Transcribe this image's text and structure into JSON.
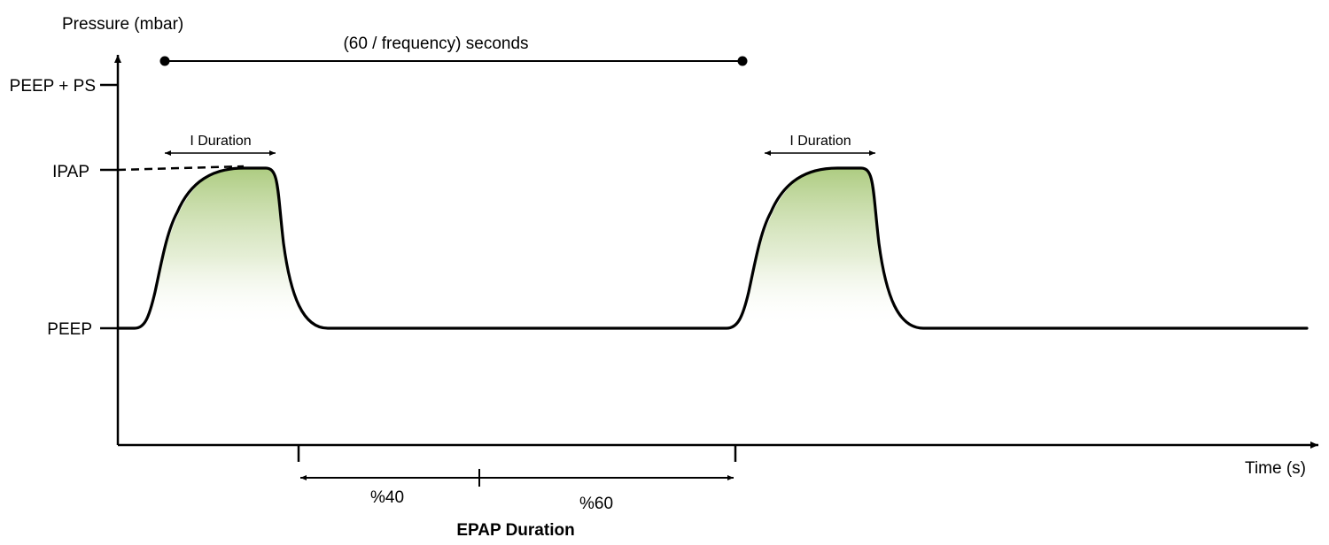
{
  "axes": {
    "y_label": "Pressure (mbar)",
    "x_label": "Time (s)"
  },
  "levels": {
    "peep_ps": "PEEP + PS",
    "ipap": "IPAP",
    "peep": "PEEP"
  },
  "annotations": {
    "period": "(60 / frequency) seconds",
    "i_duration_1": "I Duration",
    "i_duration_2": "I Duration",
    "pct_40": "%40",
    "pct_60": "%60",
    "epap_duration": "EPAP Duration"
  },
  "colors": {
    "fill_green": "#a9c97a",
    "line": "#000000"
  }
}
